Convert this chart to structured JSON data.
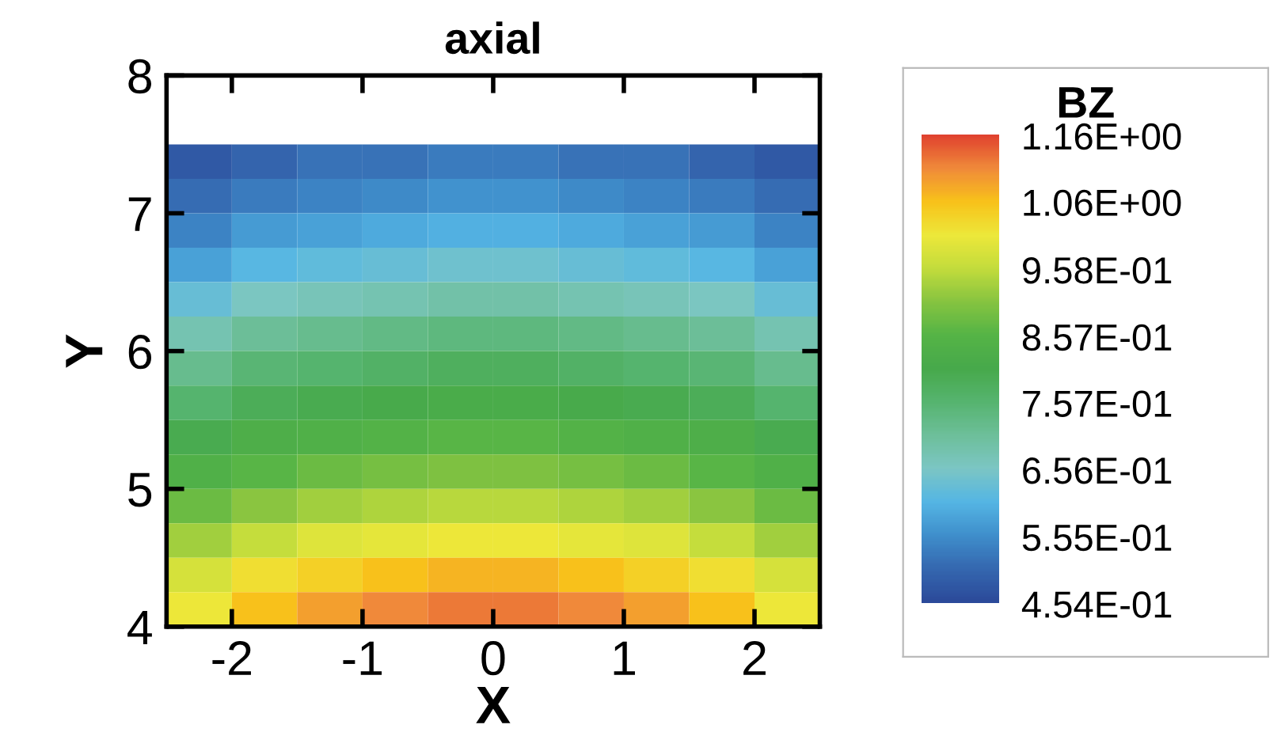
{
  "chart_data": {
    "type": "heatmap",
    "title": "axial",
    "xlabel": "X",
    "ylabel": "Y",
    "clabel": "BZ",
    "x": [
      -2.25,
      -1.75,
      -1.25,
      -0.75,
      -0.25,
      0.25,
      0.75,
      1.25,
      1.75,
      2.25
    ],
    "y": [
      7.375,
      7.125,
      6.875,
      6.625,
      6.375,
      6.125,
      5.875,
      5.625,
      5.375,
      5.125,
      4.875,
      4.625,
      4.375,
      4.125
    ],
    "cells": [
      [
        0.48,
        0.5,
        0.52,
        0.52,
        0.53,
        0.53,
        0.52,
        0.52,
        0.5,
        0.48
      ],
      [
        0.51,
        0.53,
        0.54,
        0.55,
        0.56,
        0.56,
        0.55,
        0.54,
        0.53,
        0.51
      ],
      [
        0.54,
        0.57,
        0.58,
        0.59,
        0.6,
        0.6,
        0.59,
        0.58,
        0.57,
        0.54
      ],
      [
        0.58,
        0.61,
        0.62,
        0.63,
        0.64,
        0.64,
        0.63,
        0.62,
        0.61,
        0.58
      ],
      [
        0.63,
        0.66,
        0.67,
        0.68,
        0.69,
        0.69,
        0.68,
        0.67,
        0.66,
        0.63
      ],
      [
        0.68,
        0.71,
        0.72,
        0.73,
        0.74,
        0.74,
        0.73,
        0.72,
        0.71,
        0.68
      ],
      [
        0.72,
        0.75,
        0.76,
        0.77,
        0.78,
        0.78,
        0.77,
        0.76,
        0.75,
        0.72
      ],
      [
        0.76,
        0.79,
        0.8,
        0.81,
        0.82,
        0.82,
        0.81,
        0.8,
        0.79,
        0.76
      ],
      [
        0.8,
        0.83,
        0.84,
        0.85,
        0.86,
        0.86,
        0.85,
        0.84,
        0.83,
        0.8
      ],
      [
        0.84,
        0.86,
        0.88,
        0.89,
        0.9,
        0.9,
        0.89,
        0.88,
        0.86,
        0.84
      ],
      [
        0.88,
        0.91,
        0.93,
        0.94,
        0.95,
        0.95,
        0.94,
        0.93,
        0.91,
        0.88
      ],
      [
        0.93,
        0.96,
        0.99,
        1.0,
        1.01,
        1.01,
        1.0,
        0.99,
        0.96,
        0.93
      ],
      [
        0.98,
        1.02,
        1.04,
        1.06,
        1.07,
        1.07,
        1.06,
        1.04,
        1.02,
        0.98
      ],
      [
        1.01,
        1.06,
        1.09,
        1.11,
        1.12,
        1.12,
        1.11,
        1.09,
        1.06,
        1.01
      ]
    ],
    "colors": [
      "#2b4a9a",
      "#3568b0",
      "#3f8fcc",
      "#55b6e4",
      "#7cc6c4",
      "#6dbf9a",
      "#56b46f",
      "#47a94b",
      "#55b446",
      "#86c440",
      "#c3dc3c",
      "#ede83a",
      "#f8c21a",
      "#f08a3a",
      "#e0412f"
    ],
    "xlim": [
      -2.5,
      2.5
    ],
    "ylim": [
      4,
      8
    ],
    "xticks": [
      -2,
      -1,
      0,
      1,
      2
    ],
    "yticks": [
      4,
      5,
      6,
      7,
      8
    ],
    "clim": [
      0.454,
      1.16
    ],
    "cticks": [
      {
        "value": 1.16,
        "label": "1.16E+00"
      },
      {
        "value": 1.06,
        "label": "1.06E+00"
      },
      {
        "value": 0.958,
        "label": "9.58E-01"
      },
      {
        "value": 0.857,
        "label": "8.57E-01"
      },
      {
        "value": 0.757,
        "label": "7.57E-01"
      },
      {
        "value": 0.656,
        "label": "6.56E-01"
      },
      {
        "value": 0.555,
        "label": "5.55E-01"
      },
      {
        "value": 0.454,
        "label": "4.54E-01"
      }
    ]
  }
}
